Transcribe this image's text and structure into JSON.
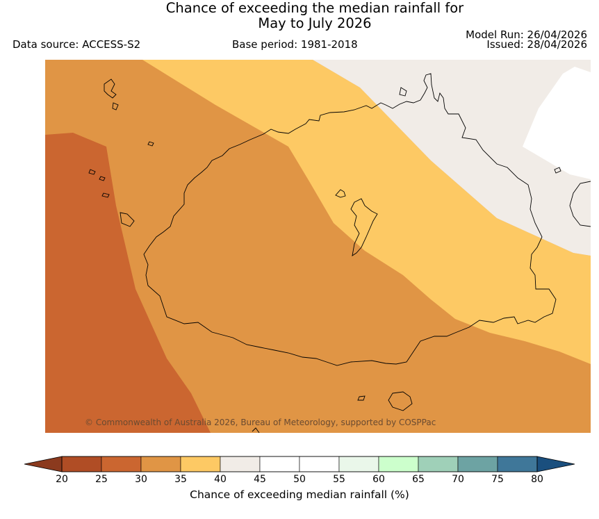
{
  "title_line1": "Chance of exceeding the median rainfall for",
  "title_line2": "May to July 2026",
  "data_source": "Data source: ACCESS-S2",
  "base_period": "Base period: 1981-2018",
  "model_run": "Model Run: 26/04/2026",
  "issued": "Issued: 28/04/2026",
  "copyright": "© Commonwealth of Australia 2026, Bureau of Meteorology, supported by COSPPac",
  "colorbar": {
    "label": "Chance of exceeding median rainfall (%)",
    "ticks": [
      "20",
      "25",
      "30",
      "35",
      "40",
      "45",
      "50",
      "55",
      "60",
      "65",
      "70",
      "75",
      "80"
    ],
    "under_color": "#8b3a1e",
    "over_color": "#1a4f7e",
    "colors": [
      "#b04d25",
      "#cb6630",
      "#e09545",
      "#fdc964",
      "#f1ece7",
      "#ffffff",
      "#ffffff",
      "#eaf7ea",
      "#ccffcc",
      "#9fd0b8",
      "#6da3a3",
      "#3f7799"
    ]
  },
  "map_legend": {
    "category_20_25": "#b04d25",
    "category_25_30": "#cb6630",
    "category_30_35": "#e09545",
    "category_35_40": "#fdc964",
    "category_40_45": "#f1ece7",
    "category_45_55": "#ffffff"
  }
}
